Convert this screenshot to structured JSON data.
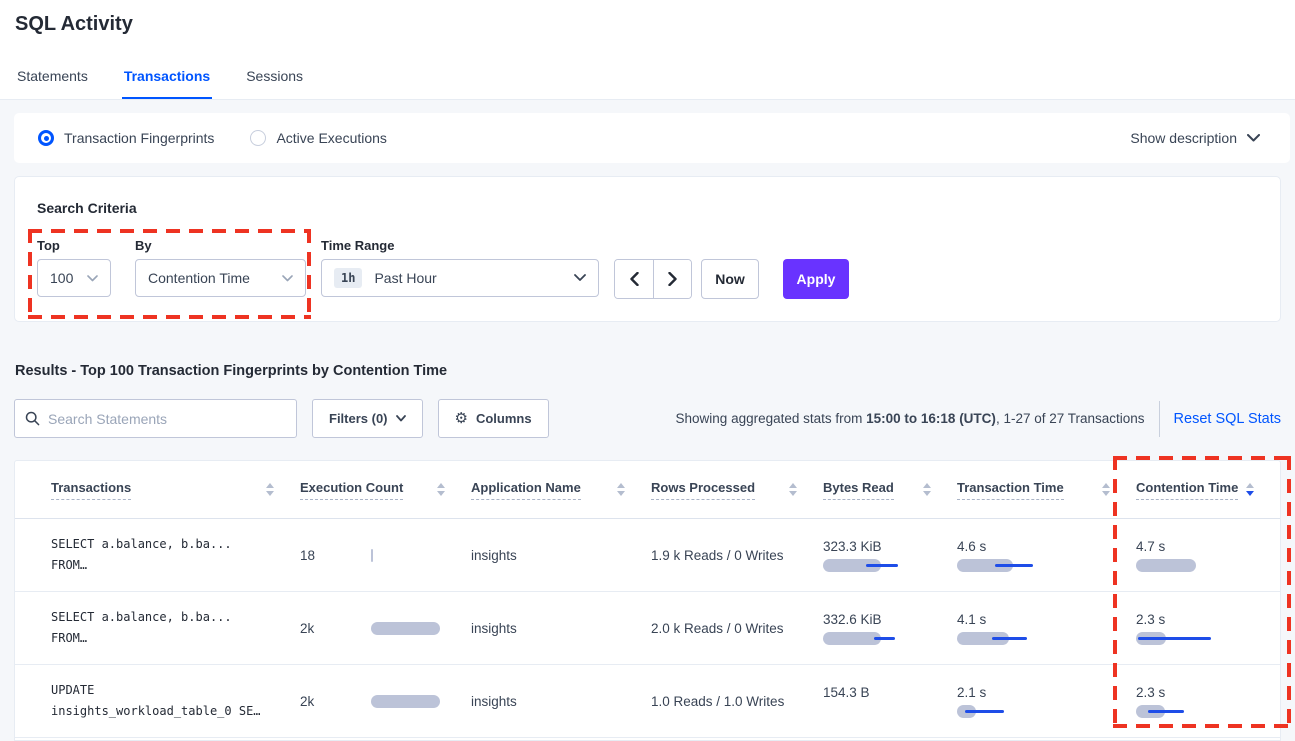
{
  "colors": {
    "accent_blue": "#0055FF",
    "apply_purple": "#6933FF",
    "annotation_red": "#EE3322",
    "bar_gray": "#BCC3D8",
    "bar_line_blue": "#1E4DE8",
    "page_background": "#F5F7FA"
  },
  "header": {
    "title": "SQL Activity",
    "tabs": [
      {
        "label": "Statements",
        "active": false
      },
      {
        "label": "Transactions",
        "active": true
      },
      {
        "label": "Sessions",
        "active": false
      }
    ]
  },
  "view_toggle": {
    "fingerprints_label": "Transaction Fingerprints",
    "fingerprints_selected": true,
    "executions_label": "Active Executions",
    "executions_selected": false,
    "show_description_label": "Show description"
  },
  "search_criteria": {
    "heading": "Search Criteria",
    "top_label": "Top",
    "top_value": "100",
    "by_label": "By",
    "by_value": "Contention Time",
    "time_range_label": "Time Range",
    "time_range_badge": "1h",
    "time_range_value": "Past Hour",
    "now_label": "Now",
    "apply_label": "Apply"
  },
  "results": {
    "heading": "Results - Top 100 Transaction Fingerprints by Contention Time",
    "search_placeholder": "Search Statements",
    "filters_label": "Filters (0)",
    "columns_label": "Columns",
    "gear_icon": "⚙",
    "stats_prefix": "Showing aggregated stats from ",
    "stats_period": "15:00 to 16:18 (UTC)",
    "stats_suffix": ", 1-27 of 27 Transactions",
    "reset_label": "Reset SQL Stats"
  },
  "table": {
    "headers": [
      "Transactions",
      "Execution Count",
      "Application Name",
      "Rows Processed",
      "Bytes Read",
      "Transaction Time",
      "Contention Time"
    ],
    "sorted_column": "Contention Time",
    "sort_direction": "desc",
    "rows": [
      {
        "query_line1": "SELECT a.balance, b.ba...",
        "query_line2": "FROM…",
        "execution_count": "18",
        "execution_bar": {
          "bar": 2
        },
        "application_name": "insights",
        "rows_processed": "1.9 k Reads / 0 Writes",
        "bytes_read": "323.3 KiB",
        "bytes_read_bar": {
          "bar": 58,
          "line": [
            43,
            75
          ]
        },
        "transaction_time": "4.6 s",
        "transaction_time_bar": {
          "bar": 56,
          "line": [
            38,
            76
          ]
        },
        "contention_time": "4.7 s",
        "contention_time_bar": {
          "bar": 60
        }
      },
      {
        "query_line1": "SELECT a.balance, b.ba...",
        "query_line2": "FROM…",
        "execution_count": "2k",
        "execution_bar": {
          "bar": 69
        },
        "application_name": "insights",
        "rows_processed": "2.0 k Reads / 0 Writes",
        "bytes_read": "332.6 KiB",
        "bytes_read_bar": {
          "bar": 58,
          "line": [
            51,
            72
          ]
        },
        "transaction_time": "4.1 s",
        "transaction_time_bar": {
          "bar": 52,
          "line": [
            35,
            70
          ]
        },
        "contention_time": "2.3 s",
        "contention_time_bar": {
          "bar": 30,
          "line": [
            2,
            75
          ]
        }
      },
      {
        "query_line1": "UPDATE",
        "query_line2": "insights_workload_table_0 SE…",
        "execution_count": "2k",
        "execution_bar": {
          "bar": 69
        },
        "application_name": "insights",
        "rows_processed": "1.0 Reads / 1.0 Writes",
        "bytes_read": "154.3 B",
        "bytes_read_bar": null,
        "transaction_time": "2.1 s",
        "transaction_time_bar": {
          "bar": 19,
          "line": [
            8,
            47
          ]
        },
        "contention_time": "2.3 s",
        "contention_time_bar": {
          "bar": 29,
          "line": [
            12,
            48
          ]
        }
      }
    ]
  },
  "annotations": [
    {
      "target": "top-and-by-criteria"
    },
    {
      "target": "contention-time-column"
    }
  ]
}
